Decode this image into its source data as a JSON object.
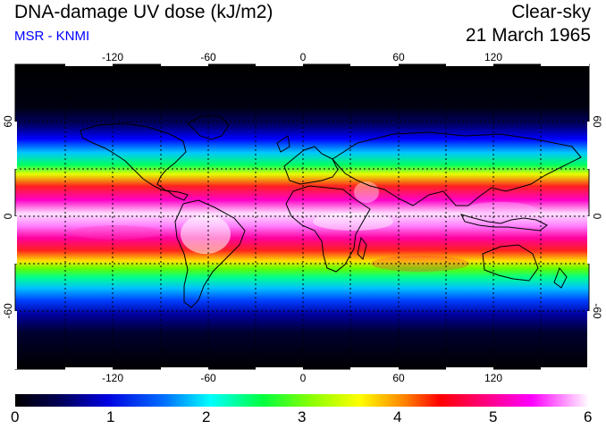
{
  "header": {
    "title": "DNA-damage UV dose (kJ/m2)",
    "subtitle": "MSR - KNMI",
    "sky": "Clear-sky",
    "date": "21 March 1965"
  },
  "map": {
    "lon_ticks": [
      "-120",
      "-60",
      "0",
      "60",
      "120"
    ],
    "lat_ticks": [
      "60",
      "0",
      "-60"
    ]
  },
  "colorbar": {
    "ticks": [
      "0",
      "1",
      "2",
      "3",
      "4",
      "5",
      "6"
    ],
    "colors": [
      "#000000",
      "#00007f",
      "#0000ff",
      "#00ffff",
      "#00ff00",
      "#ffff00",
      "#ff0000",
      "#ff00ff",
      "#ffffff"
    ]
  }
}
